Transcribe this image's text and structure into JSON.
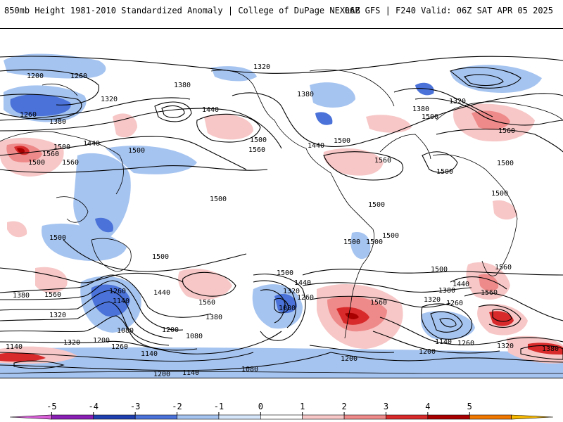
{
  "header": {
    "title_left": "850mb Height 1981-2010 Standardized Anomaly | College of DuPage NEXLAB",
    "title_right": "06Z GFS | F240 Valid: 06Z SAT APR 05 2025"
  },
  "colorbar": {
    "ticks": [
      "-5",
      "-4",
      "-3",
      "-2",
      "-1",
      "0",
      "1",
      "2",
      "3",
      "4",
      "5"
    ],
    "colors": [
      "#d85fd8",
      "#8a1fb5",
      "#1f3fb0",
      "#4a72d8",
      "#a6c4f0",
      "#d6e6fa",
      "#ffffff",
      "#f7c7c7",
      "#ef8a8a",
      "#d82a2a",
      "#a80000",
      "#f07800",
      "#f7b800"
    ]
  },
  "contour_labels": [
    {
      "text": "1200"
    },
    {
      "text": "1260"
    },
    {
      "text": "1320"
    },
    {
      "text": "1380"
    },
    {
      "text": "1440"
    },
    {
      "text": "1500"
    },
    {
      "text": "1560"
    },
    {
      "text": "1500"
    },
    {
      "text": "1560"
    },
    {
      "text": "1260"
    },
    {
      "text": "1380"
    },
    {
      "text": "1320"
    },
    {
      "text": "1380"
    },
    {
      "text": "1440"
    },
    {
      "text": "1500"
    },
    {
      "text": "1500"
    },
    {
      "text": "1500"
    },
    {
      "text": "1560"
    },
    {
      "text": "1440"
    },
    {
      "text": "1500"
    },
    {
      "text": "1560"
    },
    {
      "text": "1320"
    },
    {
      "text": "1380"
    },
    {
      "text": "1500"
    },
    {
      "text": "1500"
    },
    {
      "text": "1560"
    },
    {
      "text": "1500"
    },
    {
      "text": "1500"
    },
    {
      "text": "1500"
    },
    {
      "text": "1500"
    },
    {
      "text": "1500"
    },
    {
      "text": "1500"
    },
    {
      "text": "1500"
    },
    {
      "text": "1500"
    },
    {
      "text": "1560"
    },
    {
      "text": "1380"
    },
    {
      "text": "1560"
    },
    {
      "text": "1320"
    },
    {
      "text": "1260"
    },
    {
      "text": "1140"
    },
    {
      "text": "1440"
    },
    {
      "text": "1560"
    },
    {
      "text": "1380"
    },
    {
      "text": "1200"
    },
    {
      "text": "1080"
    },
    {
      "text": "1500"
    },
    {
      "text": "1440"
    },
    {
      "text": "1320"
    },
    {
      "text": "1260"
    },
    {
      "text": "1080"
    },
    {
      "text": "1560"
    },
    {
      "text": "1500"
    },
    {
      "text": "1440"
    },
    {
      "text": "1380"
    },
    {
      "text": "1320"
    },
    {
      "text": "1260"
    },
    {
      "text": "1560"
    },
    {
      "text": "1200"
    },
    {
      "text": "1140"
    },
    {
      "text": "1260"
    },
    {
      "text": "1320"
    },
    {
      "text": "1380"
    },
    {
      "text": "1140"
    },
    {
      "text": "1320"
    },
    {
      "text": "1200"
    },
    {
      "text": "1260"
    },
    {
      "text": "1080"
    },
    {
      "text": "1140"
    },
    {
      "text": "1200"
    },
    {
      "text": "1140"
    },
    {
      "text": "1080"
    },
    {
      "text": "1200"
    }
  ]
}
